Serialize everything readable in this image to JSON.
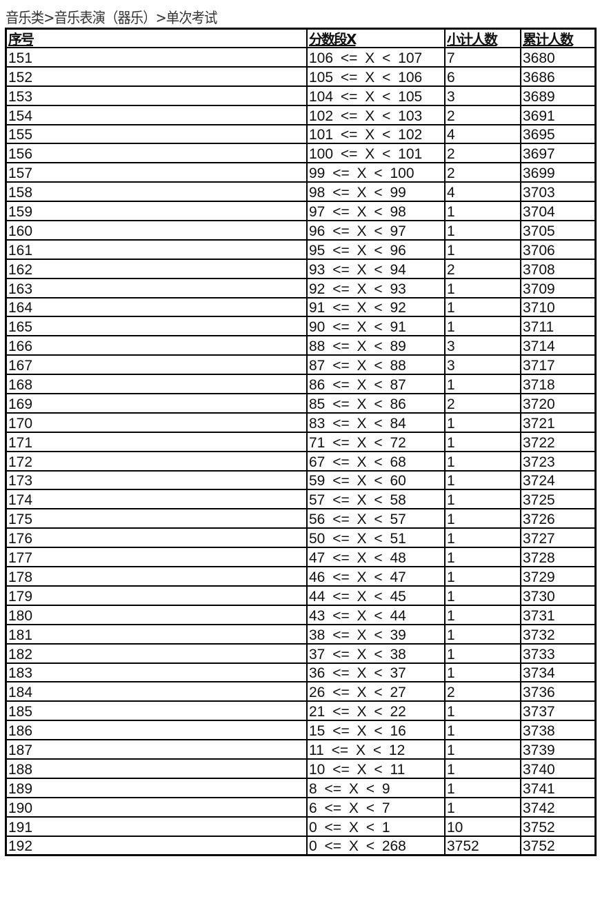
{
  "title": "音乐类>音乐表演（器乐）>单次考试",
  "table": {
    "headers": [
      "序号",
      "分数段X",
      "小计人数",
      "累计人数"
    ],
    "rows": [
      [
        "151",
        "106 <= X < 107",
        "7",
        "3680"
      ],
      [
        "152",
        "105 <= X < 106",
        "6",
        "3686"
      ],
      [
        "153",
        "104 <= X < 105",
        "3",
        "3689"
      ],
      [
        "154",
        "102 <= X < 103",
        "2",
        "3691"
      ],
      [
        "155",
        "101 <= X < 102",
        "4",
        "3695"
      ],
      [
        "156",
        "100 <= X < 101",
        "2",
        "3697"
      ],
      [
        "157",
        "99 <= X < 100",
        "2",
        "3699"
      ],
      [
        "158",
        "98 <= X < 99",
        "4",
        "3703"
      ],
      [
        "159",
        "97 <= X < 98",
        "1",
        "3704"
      ],
      [
        "160",
        "96 <= X < 97",
        "1",
        "3705"
      ],
      [
        "161",
        "95 <= X < 96",
        "1",
        "3706"
      ],
      [
        "162",
        "93 <= X < 94",
        "2",
        "3708"
      ],
      [
        "163",
        "92 <= X < 93",
        "1",
        "3709"
      ],
      [
        "164",
        "91 <= X < 92",
        "1",
        "3710"
      ],
      [
        "165",
        "90 <= X < 91",
        "1",
        "3711"
      ],
      [
        "166",
        "88 <= X < 89",
        "3",
        "3714"
      ],
      [
        "167",
        "87 <= X < 88",
        "3",
        "3717"
      ],
      [
        "168",
        "86 <= X < 87",
        "1",
        "3718"
      ],
      [
        "169",
        "85 <= X < 86",
        "2",
        "3720"
      ],
      [
        "170",
        "83 <= X < 84",
        "1",
        "3721"
      ],
      [
        "171",
        "71 <= X < 72",
        "1",
        "3722"
      ],
      [
        "172",
        "67 <= X < 68",
        "1",
        "3723"
      ],
      [
        "173",
        "59 <= X < 60",
        "1",
        "3724"
      ],
      [
        "174",
        "57 <= X < 58",
        "1",
        "3725"
      ],
      [
        "175",
        "56 <= X < 57",
        "1",
        "3726"
      ],
      [
        "176",
        "50 <= X < 51",
        "1",
        "3727"
      ],
      [
        "177",
        "47 <= X < 48",
        "1",
        "3728"
      ],
      [
        "178",
        "46 <= X < 47",
        "1",
        "3729"
      ],
      [
        "179",
        "44 <= X < 45",
        "1",
        "3730"
      ],
      [
        "180",
        "43 <= X < 44",
        "1",
        "3731"
      ],
      [
        "181",
        "38 <= X < 39",
        "1",
        "3732"
      ],
      [
        "182",
        "37 <= X < 38",
        "1",
        "3733"
      ],
      [
        "183",
        "36 <= X < 37",
        "1",
        "3734"
      ],
      [
        "184",
        "26 <= X < 27",
        "2",
        "3736"
      ],
      [
        "185",
        "21 <= X < 22",
        "1",
        "3737"
      ],
      [
        "186",
        "15 <= X < 16",
        "1",
        "3738"
      ],
      [
        "187",
        "11 <= X < 12",
        "1",
        "3739"
      ],
      [
        "188",
        "10 <= X < 11",
        "1",
        "3740"
      ],
      [
        "189",
        "8 <= X < 9",
        "1",
        "3741"
      ],
      [
        "190",
        "6 <= X < 7",
        "1",
        "3742"
      ],
      [
        "191",
        "0 <= X < 1",
        "10",
        "3752"
      ],
      [
        "192",
        "0 <= X < 268",
        "3752",
        "3752"
      ]
    ]
  }
}
